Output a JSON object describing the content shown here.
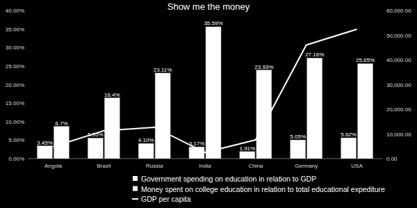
{
  "chart_data": {
    "type": "bar",
    "title": "Show me the money",
    "categories": [
      "Angola",
      "Brazil",
      "Russia",
      "India",
      "China",
      "Germany",
      "USA"
    ],
    "series": [
      {
        "name": "Government spending on education in relation to GDP",
        "type": "bar",
        "color": "#ffffff",
        "values": [
          3.45,
          5.55,
          4.1,
          3.17,
          1.91,
          5.05,
          5.62
        ],
        "value_labels": [
          "3.45%",
          "5.55%",
          "4.10%",
          "3.17%",
          "1.91%",
          "5.05%",
          "5.62%"
        ]
      },
      {
        "name": "Money spent on college education in relation to total educational expediture",
        "type": "bar",
        "color": "#ffffff",
        "values": [
          8.7,
          16.4,
          23.11,
          35.59,
          23.93,
          27.16,
          25.65
        ],
        "value_labels": [
          "8.7%",
          "16.4%",
          "23.11%",
          "35.59%",
          "23.93%",
          "27.16%",
          "25.65%"
        ]
      },
      {
        "name": "GDP per capita",
        "type": "line",
        "color": "#ffffff",
        "axis": "y2",
        "values": [
          4800,
          11300,
          12700,
          2500,
          7600,
          46000,
          52400
        ]
      }
    ],
    "ylim": [
      0,
      40
    ],
    "yticks": [
      {
        "value": 0,
        "label": "0.00%"
      },
      {
        "value": 5,
        "label": "5.00%"
      },
      {
        "value": 10,
        "label": "10.00%"
      },
      {
        "value": 15,
        "label": "15.00%"
      },
      {
        "value": 20,
        "label": "20.00%"
      },
      {
        "value": 25,
        "label": "25.00%"
      },
      {
        "value": 30,
        "label": "30.00%"
      },
      {
        "value": 35,
        "label": "35.00%"
      },
      {
        "value": 40,
        "label": "40.00%"
      }
    ],
    "y2lim": [
      0,
      60000
    ],
    "y2ticks": [
      {
        "value": 0,
        "label": "0.00"
      },
      {
        "value": 10000,
        "label": "10,000.00"
      },
      {
        "value": 20000,
        "label": "20,000.00"
      },
      {
        "value": 30000,
        "label": "30,000.00"
      },
      {
        "value": 40000,
        "label": "40,000.00"
      },
      {
        "value": 50000,
        "label": "50,000.00"
      },
      {
        "value": 60000,
        "label": "60,000.00"
      }
    ],
    "data_labels": true,
    "grid": false,
    "legend": "bottom"
  }
}
